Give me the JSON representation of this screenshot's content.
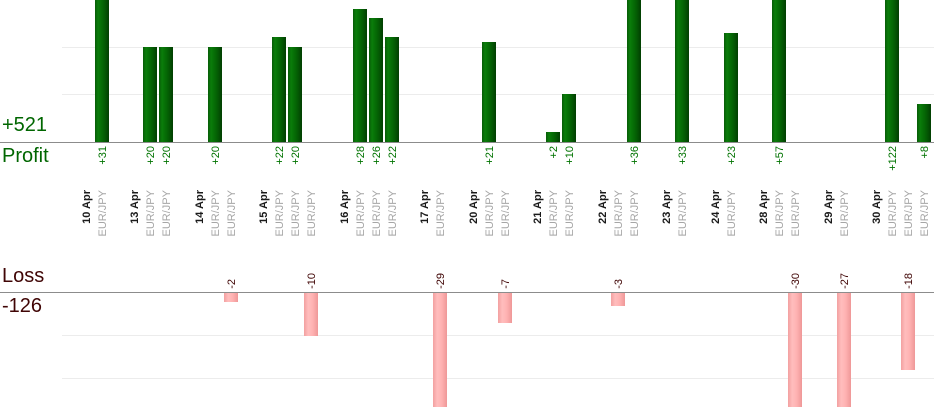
{
  "labels": {
    "profit_total": "+521",
    "profit_label": "Profit",
    "loss_label": "Loss",
    "loss_total": "-126"
  },
  "colors": {
    "profit_text": "#006600",
    "profit_value": "#007300",
    "loss_text": "#400505",
    "date_label": "#1a1a1a",
    "pair_label": "#a6a6a6",
    "axis_line": "#8c8c8c",
    "gridline": "#ececec",
    "green_edge": "#085c08",
    "green_light": "#0a7d0a",
    "green_mid": "#046304",
    "green_dark": "#023f02",
    "pink_edge": "#f2a0a0",
    "pink_light": "#ffbdbd",
    "pink_mid": "#ffb3b3",
    "pink_dark": "#ef9898"
  },
  "chart_data": {
    "type": "bar",
    "title": "",
    "xlabel": "",
    "ylabel": "",
    "description": "Daily trade profit/loss bars; profits plotted upward from the Profit axis, losses plotted downward from the Loss axis. Tall bars are clipped by the visible crop.",
    "legend": [
      "Profit",
      "Loss"
    ],
    "gridline_levels": [
      10,
      20,
      -10,
      -20
    ],
    "totals": {
      "profit": 521,
      "loss": -126,
      "profit_text": "+521",
      "loss_text": "-126"
    },
    "groups": [
      {
        "date": "10 Apr",
        "trades": [
          {
            "pair": "EUR/JPY",
            "value": 31,
            "label": "+31"
          }
        ]
      },
      {
        "date": "13 Apr",
        "trades": [
          {
            "pair": "EUR/JPY",
            "value": 20,
            "label": "+20"
          },
          {
            "pair": "EUR/JPY",
            "value": 20,
            "label": "+20"
          }
        ]
      },
      {
        "date": "14 Apr",
        "trades": [
          {
            "pair": "EUR/JPY",
            "value": 20,
            "label": "+20"
          },
          {
            "pair": "EUR/JPY",
            "value": -2,
            "label": "-2"
          }
        ]
      },
      {
        "date": "15 Apr",
        "trades": [
          {
            "pair": "EUR/JPY",
            "value": 22,
            "label": "+22"
          },
          {
            "pair": "EUR/JPY",
            "value": 20,
            "label": "+20"
          },
          {
            "pair": "EUR/JPY",
            "value": -10,
            "label": "-10"
          }
        ]
      },
      {
        "date": "16 Apr",
        "trades": [
          {
            "pair": "EUR/JPY",
            "value": 28,
            "label": "+28"
          },
          {
            "pair": "EUR/JPY",
            "value": 26,
            "label": "+26"
          },
          {
            "pair": "EUR/JPY",
            "value": 22,
            "label": "+22"
          }
        ]
      },
      {
        "date": "17 Apr",
        "trades": [
          {
            "pair": "EUR/JPY",
            "value": -29,
            "label": "-29"
          }
        ]
      },
      {
        "date": "20 Apr",
        "trades": [
          {
            "pair": "EUR/JPY",
            "value": 21,
            "label": "+21"
          },
          {
            "pair": "EUR/JPY",
            "value": -7,
            "label": "-7"
          }
        ]
      },
      {
        "date": "21 Apr",
        "trades": [
          {
            "pair": "EUR/JPY",
            "value": 2,
            "label": "+2"
          },
          {
            "pair": "EUR/JPY",
            "value": 10,
            "label": "+10"
          }
        ]
      },
      {
        "date": "22 Apr",
        "trades": [
          {
            "pair": "EUR/JPY",
            "value": -3,
            "label": "-3"
          },
          {
            "pair": "EUR/JPY",
            "value": 36,
            "label": "+36"
          }
        ]
      },
      {
        "date": "23 Apr",
        "trades": [
          {
            "pair": "EUR/JPY",
            "value": 33,
            "label": "+33"
          }
        ]
      },
      {
        "date": "24 Apr",
        "trades": [
          {
            "pair": "EUR/JPY",
            "value": 23,
            "label": "+23"
          }
        ]
      },
      {
        "date": "28 Apr",
        "trades": [
          {
            "pair": "EUR/JPY",
            "value": 57,
            "label": "+57"
          },
          {
            "pair": "EUR/JPY",
            "value": -30,
            "label": "-30"
          }
        ]
      },
      {
        "date": "29 Apr",
        "trades": [
          {
            "pair": "EUR/JPY",
            "value": -27,
            "label": "-27"
          }
        ]
      },
      {
        "date": "30 Apr",
        "trades": [
          {
            "pair": "EUR/JPY",
            "value": 122,
            "label": "+122"
          },
          {
            "pair": "EUR/JPY",
            "value": -18,
            "label": "-18"
          },
          {
            "pair": "EUR/JPY",
            "value": 8,
            "label": "+8"
          }
        ]
      }
    ]
  }
}
